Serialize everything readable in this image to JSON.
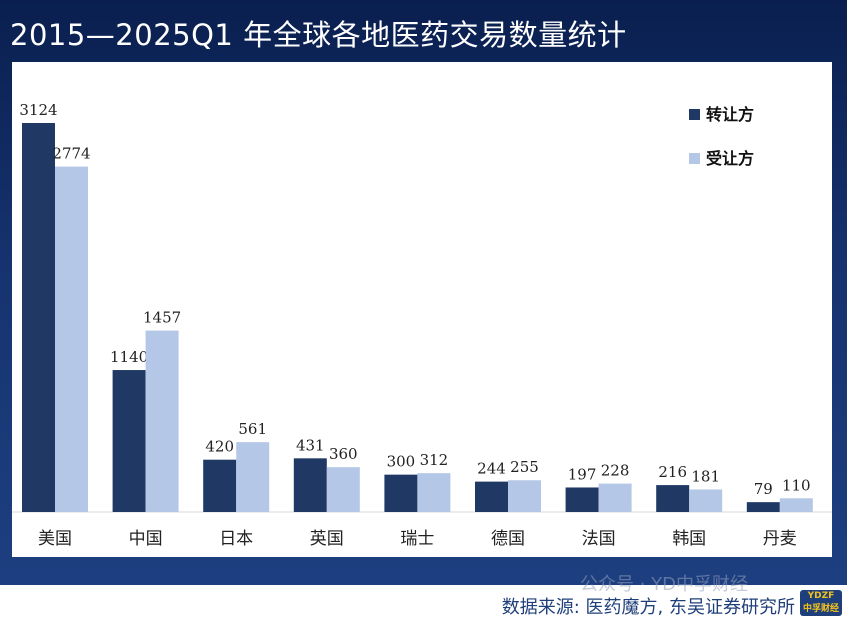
{
  "title": "2015—2025Q1 年全球各地医药交易数量统计",
  "source": "数据来源: 医药魔方, 东吴证券研究所",
  "watermark": "公众号 · YD中孚财经",
  "colors": {
    "background": "#0a1f4f",
    "series_transfer": "#1f3864",
    "series_receive": "#b4c7e7",
    "source_text": "#1f3f7a"
  },
  "chart_data": {
    "type": "bar",
    "categories": [
      "美国",
      "中国",
      "日本",
      "英国",
      "瑞士",
      "德国",
      "法国",
      "韩国",
      "丹麦"
    ],
    "series": [
      {
        "name": "转让方",
        "values": [
          3124,
          1140,
          420,
          431,
          300,
          244,
          197,
          216,
          79
        ]
      },
      {
        "name": "受让方",
        "values": [
          2774,
          1457,
          561,
          360,
          312,
          255,
          228,
          181,
          110
        ]
      }
    ],
    "ylim": [
      0,
      3300
    ],
    "grid": false,
    "legend": "top-right",
    "data_labels": true
  }
}
